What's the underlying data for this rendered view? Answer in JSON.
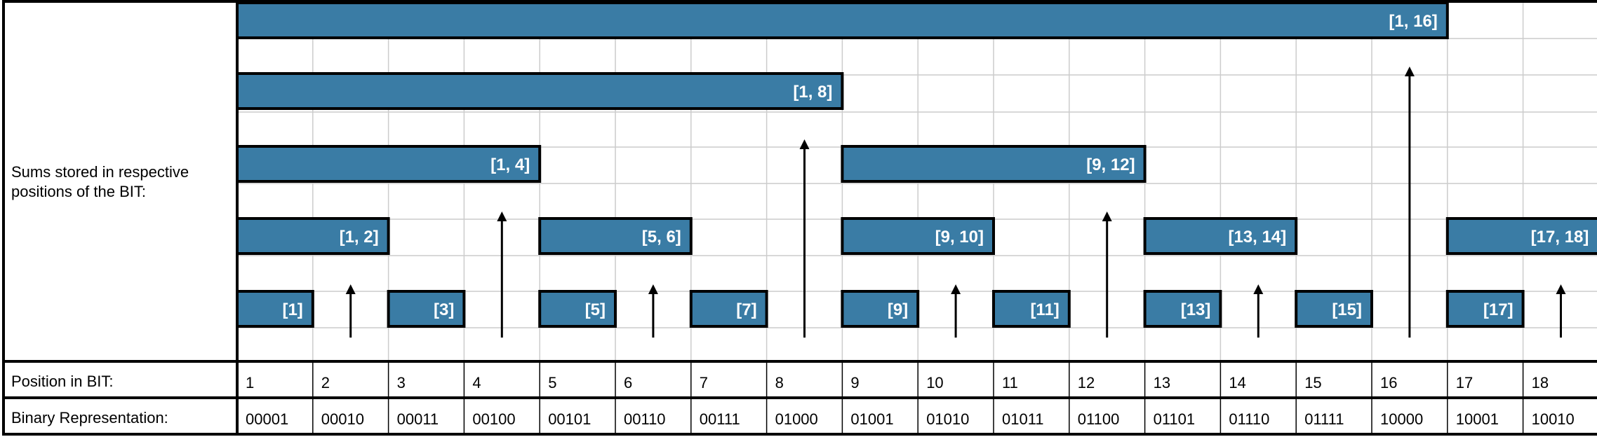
{
  "labels": {
    "sums_row": "Sums stored in respective positions of the BIT:",
    "position_row": "Position in BIT:",
    "binary_row": "Binary Representation:"
  },
  "positions": [
    "1",
    "2",
    "3",
    "4",
    "5",
    "6",
    "7",
    "8",
    "9",
    "10",
    "11",
    "12",
    "13",
    "14",
    "15",
    "16",
    "17",
    "18"
  ],
  "binary": [
    "00001",
    "00010",
    "00011",
    "00100",
    "00101",
    "00110",
    "00111",
    "01000",
    "01001",
    "01010",
    "01011",
    "01100",
    "01101",
    "01110",
    "01111",
    "10000",
    "10001",
    "10010"
  ],
  "ranges": [
    {
      "label": "[1]",
      "start": 1,
      "end": 1
    },
    {
      "label": "[1, 2]",
      "start": 1,
      "end": 2
    },
    {
      "label": "[3]",
      "start": 3,
      "end": 3
    },
    {
      "label": "[1, 4]",
      "start": 1,
      "end": 4
    },
    {
      "label": "[5]",
      "start": 5,
      "end": 5
    },
    {
      "label": "[5, 6]",
      "start": 5,
      "end": 6
    },
    {
      "label": "[7]",
      "start": 7,
      "end": 7
    },
    {
      "label": "[1, 8]",
      "start": 1,
      "end": 8
    },
    {
      "label": "[9]",
      "start": 9,
      "end": 9
    },
    {
      "label": "[9, 10]",
      "start": 9,
      "end": 10
    },
    {
      "label": "[11]",
      "start": 11,
      "end": 11
    },
    {
      "label": "[9, 12]",
      "start": 9,
      "end": 12
    },
    {
      "label": "[13]",
      "start": 13,
      "end": 13
    },
    {
      "label": "[13, 14]",
      "start": 13,
      "end": 14
    },
    {
      "label": "[15]",
      "start": 15,
      "end": 15
    },
    {
      "label": "[1, 16]",
      "start": 1,
      "end": 16
    },
    {
      "label": "[17]",
      "start": 17,
      "end": 17
    },
    {
      "label": "[17, 18]",
      "start": 17,
      "end": 18
    }
  ],
  "colors": {
    "bar_fill": "#3a7ca5",
    "bar_text": "#ffffff",
    "grid": "#cccccc",
    "border": "#000000"
  }
}
